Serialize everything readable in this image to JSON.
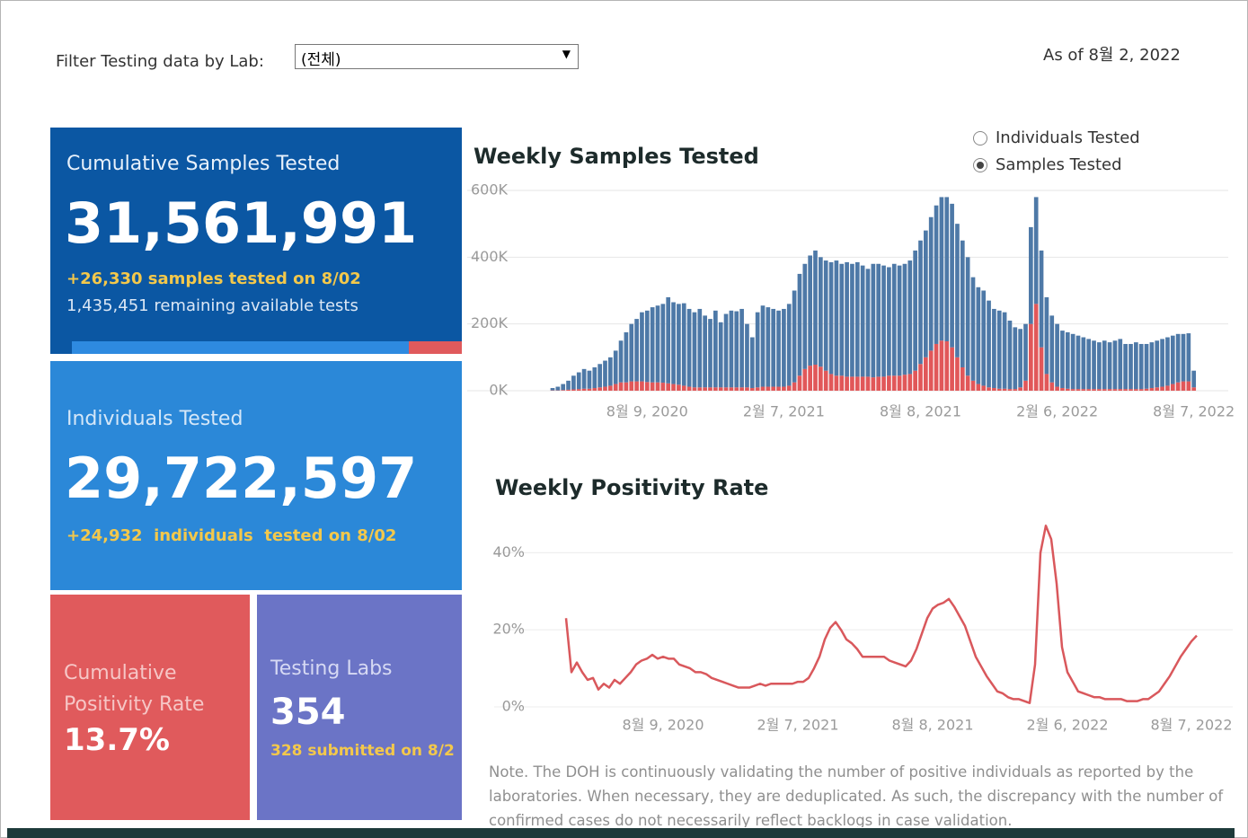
{
  "filter": {
    "label": "Filter Testing data by Lab:",
    "value": "(전체)"
  },
  "as_of": "As of 8월 2, 2022",
  "tiles": [
    {
      "title": "Cumulative Samples Tested",
      "value": "31,561,991",
      "notes": [
        "+26,330 samples tested on 8/02",
        "1,435,451 remaining available tests"
      ]
    },
    {
      "title": "Individuals Tested",
      "value": "29,722,597",
      "notes": [
        "+24,932  individuals  tested on 8/02"
      ]
    },
    {
      "title": "Cumulative Positivity Rate",
      "value": "13.7%"
    },
    {
      "title": "Testing Labs",
      "value": "354",
      "notes": [
        "328 submitted on 8/2"
      ]
    }
  ],
  "toggle": {
    "options": [
      "Individuals Tested",
      "Samples Tested"
    ],
    "selected": 1
  },
  "note": "Note. The DOH is continuously validating the number of positive individuals as reported by the laboratories. When necessary, they are deduplicated. As such, the discrepancy with the number of confirmed cases do not necessarily reflect backlogs in case validation.",
  "chart_data": [
    {
      "type": "bar",
      "stacked": true,
      "title": "Weekly Samples Tested",
      "categories": [
        null,
        null,
        null,
        null,
        null,
        null,
        null,
        null,
        null,
        null,
        null,
        null,
        null,
        null,
        null,
        null,
        null,
        null,
        "8월 9, 2020",
        null,
        null,
        null,
        null,
        null,
        null,
        null,
        null,
        null,
        null,
        null,
        null,
        null,
        null,
        null,
        null,
        null,
        null,
        null,
        null,
        null,
        null,
        null,
        null,
        null,
        "2월 7, 2021",
        null,
        null,
        null,
        null,
        null,
        null,
        null,
        null,
        null,
        null,
        null,
        null,
        null,
        null,
        null,
        null,
        null,
        null,
        null,
        null,
        null,
        null,
        null,
        null,
        null,
        "8월 8, 2021",
        null,
        null,
        null,
        null,
        null,
        null,
        null,
        null,
        null,
        null,
        null,
        null,
        null,
        null,
        null,
        null,
        null,
        null,
        null,
        null,
        null,
        null,
        null,
        null,
        null,
        "2월 6, 2022",
        null,
        null,
        null,
        null,
        null,
        null,
        null,
        null,
        null,
        null,
        null,
        null,
        null,
        null,
        null,
        null,
        null,
        null,
        null,
        null,
        null,
        null,
        null,
        null,
        null,
        "8월 7, 2022"
      ],
      "series": [
        {
          "color": "#e15759",
          "values": [
            1000,
            1000,
            2000,
            3000,
            4000,
            5000,
            6000,
            6000,
            8000,
            10000,
            12000,
            15000,
            20000,
            25000,
            25000,
            28000,
            28000,
            28000,
            26000,
            25000,
            25000,
            24000,
            22000,
            20000,
            18000,
            15000,
            12000,
            10000,
            10000,
            10000,
            10000,
            10000,
            10000,
            10000,
            10000,
            10000,
            10000,
            10000,
            8000,
            10000,
            12000,
            12000,
            12000,
            12000,
            12000,
            15000,
            25000,
            45000,
            65000,
            75000,
            78000,
            72000,
            60000,
            50000,
            45000,
            45000,
            42000,
            42000,
            42000,
            42000,
            42000,
            40000,
            42000,
            42000,
            45000,
            45000,
            45000,
            48000,
            50000,
            60000,
            80000,
            100000,
            120000,
            140000,
            150000,
            148000,
            130000,
            100000,
            70000,
            45000,
            30000,
            20000,
            15000,
            10000,
            8000,
            6000,
            6000,
            5000,
            5000,
            10000,
            30000,
            200000,
            260000,
            130000,
            50000,
            25000,
            12000,
            8000,
            6000,
            5000,
            5000,
            5000,
            5000,
            5000,
            5000,
            5000,
            5000,
            5000,
            5000,
            5000,
            5000,
            5000,
            5000,
            6000,
            8000,
            10000,
            12000,
            15000,
            20000,
            25000,
            28000,
            28000,
            10000
          ]
        },
        {
          "color": "#4e79a7",
          "values": [
            7000,
            11000,
            18000,
            27000,
            41000,
            50000,
            59000,
            54000,
            62000,
            70000,
            78000,
            85000,
            100000,
            125000,
            150000,
            172000,
            187000,
            207000,
            214000,
            225000,
            230000,
            236000,
            258000,
            245000,
            242000,
            247000,
            233000,
            225000,
            235000,
            215000,
            205000,
            230000,
            195000,
            220000,
            230000,
            228000,
            235000,
            190000,
            152000,
            225000,
            243000,
            238000,
            233000,
            228000,
            233000,
            245000,
            275000,
            305000,
            315000,
            330000,
            342000,
            328000,
            330000,
            335000,
            345000,
            335000,
            343000,
            338000,
            343000,
            333000,
            323000,
            340000,
            338000,
            333000,
            325000,
            335000,
            330000,
            332000,
            340000,
            360000,
            370000,
            380000,
            400000,
            415000,
            430000,
            432000,
            430000,
            400000,
            380000,
            355000,
            310000,
            290000,
            285000,
            260000,
            237000,
            234000,
            229000,
            205000,
            185000,
            175000,
            170000,
            290000,
            320000,
            290000,
            230000,
            200000,
            188000,
            172000,
            169000,
            165000,
            160000,
            155000,
            150000,
            145000,
            140000,
            145000,
            140000,
            145000,
            150000,
            135000,
            135000,
            140000,
            135000,
            134000,
            137000,
            140000,
            143000,
            145000,
            145000,
            145000,
            142000,
            144000,
            50000
          ]
        }
      ],
      "ylim": [
        0,
        600000
      ],
      "yticks": [
        {
          "value": 0,
          "label": "0K"
        },
        {
          "value": 200000,
          "label": "200K"
        },
        {
          "value": 400000,
          "label": "400K"
        },
        {
          "value": 600000,
          "label": "600K"
        }
      ],
      "grid": true
    },
    {
      "type": "line",
      "title": "Weekly Positivity Rate",
      "color": "#d9585c",
      "categories": [
        null,
        null,
        null,
        null,
        null,
        null,
        null,
        null,
        null,
        null,
        null,
        null,
        null,
        null,
        null,
        null,
        null,
        null,
        "8월 9, 2020",
        null,
        null,
        null,
        null,
        null,
        null,
        null,
        null,
        null,
        null,
        null,
        null,
        null,
        null,
        null,
        null,
        null,
        null,
        null,
        null,
        null,
        null,
        null,
        null,
        "2월 7, 2021",
        null,
        null,
        null,
        null,
        null,
        null,
        null,
        null,
        null,
        null,
        null,
        null,
        null,
        null,
        null,
        null,
        null,
        null,
        null,
        null,
        null,
        null,
        null,
        null,
        "8월 8, 2021",
        null,
        null,
        null,
        null,
        null,
        null,
        null,
        null,
        null,
        null,
        null,
        null,
        null,
        null,
        null,
        null,
        null,
        null,
        null,
        null,
        null,
        null,
        null,
        null,
        "2월 6, 2022",
        null,
        null,
        null,
        null,
        null,
        null,
        null,
        null,
        null,
        null,
        null,
        null,
        null,
        null,
        null,
        null,
        null,
        null,
        null,
        null,
        null,
        null,
        "8월 7, 2022",
        null
      ],
      "values": [
        23,
        9,
        11.5,
        9,
        7,
        7.5,
        4.5,
        6,
        5,
        7,
        6,
        7.5,
        9,
        11,
        12,
        12.5,
        13.5,
        12.5,
        13,
        12.5,
        12.5,
        11,
        10.5,
        10,
        9,
        9,
        8.5,
        7.5,
        7,
        6.5,
        6,
        5.5,
        5,
        5,
        5,
        5.5,
        6,
        5.5,
        6,
        6,
        6,
        6,
        6,
        6.5,
        6.5,
        7.5,
        10,
        13,
        17.5,
        20.5,
        22,
        20,
        17.5,
        16.5,
        15,
        13,
        13,
        13,
        13,
        13,
        12,
        11.5,
        11,
        10.5,
        12,
        15,
        19,
        23,
        25.5,
        26.5,
        27,
        28,
        26,
        23.5,
        21,
        17,
        13,
        10.5,
        8,
        6,
        4,
        3.5,
        2.5,
        2,
        2,
        1.5,
        1,
        11,
        40,
        47,
        43.5,
        32,
        15.5,
        9,
        6.5,
        4,
        3.5,
        3,
        2.5,
        2.5,
        2,
        2,
        2,
        2,
        1.5,
        1.5,
        1.5,
        2,
        2,
        3,
        4,
        6,
        8,
        10.5,
        13,
        15,
        17,
        18.5
      ],
      "ylim": [
        0,
        48
      ],
      "yticks": [
        {
          "value": 0,
          "label": "0%"
        },
        {
          "value": 20,
          "label": "20%"
        },
        {
          "value": 40,
          "label": "40%"
        }
      ],
      "grid": true
    }
  ]
}
